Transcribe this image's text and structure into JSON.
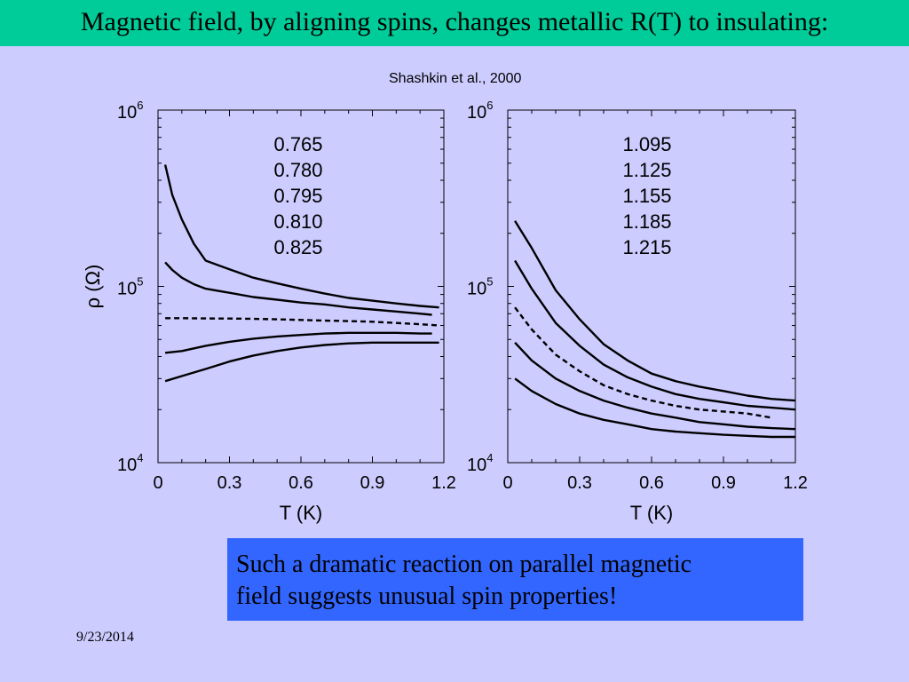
{
  "slide": {
    "title": "Magnetic field, by aligning spins, changes metallic R(T) to insulating:",
    "citation": "Shashkin et al., 2000",
    "callout_line1": "Such a dramatic reaction on parallel magnetic",
    "callout_line2": "field suggests unusual spin properties!",
    "date": "9/23/2014",
    "colors": {
      "title_bar": "#00cc99",
      "background": "#ccccff",
      "callout": "#3366ff"
    }
  },
  "chart_data": [
    {
      "type": "line",
      "ylog": true,
      "xlim": [
        0,
        1.2
      ],
      "ylim": [
        10000,
        1000000
      ],
      "xlabel": "T (K)",
      "ylabel": "ρ (Ω)",
      "xticklabels": [
        "0",
        "0.3",
        "0.6",
        "0.9",
        "1.2"
      ],
      "yticklabels": [
        {
          "base": "10",
          "exp": "6"
        },
        {
          "base": "10",
          "exp": "5"
        },
        {
          "base": "10",
          "exp": "4"
        }
      ],
      "legend": [
        "0.765",
        "0.780",
        "0.795",
        "0.810",
        "0.825"
      ],
      "series": [
        {
          "style": "solid",
          "points": [
            [
              0.03,
              490000
            ],
            [
              0.06,
              330000
            ],
            [
              0.1,
              240000
            ],
            [
              0.15,
              175000
            ],
            [
              0.2,
              140000
            ],
            [
              0.3,
              125000
            ],
            [
              0.4,
              112000
            ],
            [
              0.5,
              104000
            ],
            [
              0.6,
              97000
            ],
            [
              0.7,
              91000
            ],
            [
              0.8,
              86000
            ],
            [
              0.9,
              83000
            ],
            [
              1.0,
              80000
            ],
            [
              1.1,
              77500
            ],
            [
              1.18,
              76000
            ]
          ]
        },
        {
          "style": "solid",
          "points": [
            [
              0.03,
              137000
            ],
            [
              0.06,
              124000
            ],
            [
              0.1,
              112000
            ],
            [
              0.15,
              103000
            ],
            [
              0.2,
              97000
            ],
            [
              0.3,
              92000
            ],
            [
              0.4,
              87000
            ],
            [
              0.5,
              84000
            ],
            [
              0.6,
              81000
            ],
            [
              0.7,
              79000
            ],
            [
              0.8,
              76000
            ],
            [
              0.9,
              74000
            ],
            [
              1.0,
              72000
            ],
            [
              1.1,
              70000
            ],
            [
              1.15,
              69000
            ]
          ]
        },
        {
          "style": "dashed",
          "points": [
            [
              0.03,
              66000
            ],
            [
              0.1,
              66000
            ],
            [
              0.2,
              65800
            ],
            [
              0.3,
              65700
            ],
            [
              0.4,
              65500
            ],
            [
              0.5,
              65000
            ],
            [
              0.6,
              64500
            ],
            [
              0.7,
              64000
            ],
            [
              0.8,
              63500
            ],
            [
              0.9,
              63000
            ],
            [
              1.0,
              62000
            ],
            [
              1.1,
              61000
            ],
            [
              1.18,
              60000
            ]
          ]
        },
        {
          "style": "solid",
          "points": [
            [
              0.03,
              42000
            ],
            [
              0.1,
              43000
            ],
            [
              0.2,
              46000
            ],
            [
              0.3,
              48500
            ],
            [
              0.4,
              50500
            ],
            [
              0.5,
              52000
            ],
            [
              0.6,
              53000
            ],
            [
              0.7,
              54000
            ],
            [
              0.8,
              54500
            ],
            [
              0.9,
              54500
            ],
            [
              1.0,
              54500
            ],
            [
              1.1,
              54000
            ],
            [
              1.15,
              54000
            ]
          ]
        },
        {
          "style": "solid",
          "points": [
            [
              0.03,
              29000
            ],
            [
              0.1,
              31000
            ],
            [
              0.2,
              34000
            ],
            [
              0.3,
              37500
            ],
            [
              0.4,
              40500
            ],
            [
              0.5,
              43000
            ],
            [
              0.6,
              45000
            ],
            [
              0.7,
              46500
            ],
            [
              0.8,
              47500
            ],
            [
              0.9,
              48000
            ],
            [
              1.0,
              48000
            ],
            [
              1.1,
              48000
            ],
            [
              1.18,
              48000
            ]
          ]
        }
      ]
    },
    {
      "type": "line",
      "ylog": true,
      "xlim": [
        0,
        1.2
      ],
      "ylim": [
        10000,
        1000000
      ],
      "xlabel": "T (K)",
      "ylabel": "",
      "xticklabels": [
        "0",
        "0.3",
        "0.6",
        "0.9",
        "1.2"
      ],
      "yticklabels": [
        {
          "base": "10",
          "exp": "6"
        },
        {
          "base": "10",
          "exp": "5"
        },
        {
          "base": "10",
          "exp": "4"
        }
      ],
      "legend": [
        "1.095",
        "1.125",
        "1.155",
        "1.185",
        "1.215"
      ],
      "series": [
        {
          "style": "solid",
          "points": [
            [
              0.03,
              235000
            ],
            [
              0.1,
              165000
            ],
            [
              0.2,
              95000
            ],
            [
              0.3,
              65000
            ],
            [
              0.4,
              47000
            ],
            [
              0.5,
              38000
            ],
            [
              0.6,
              32000
            ],
            [
              0.7,
              29000
            ],
            [
              0.8,
              27000
            ],
            [
              0.9,
              25500
            ],
            [
              1.0,
              24000
            ],
            [
              1.1,
              23000
            ],
            [
              1.2,
              22500
            ]
          ]
        },
        {
          "style": "solid",
          "points": [
            [
              0.03,
              140000
            ],
            [
              0.1,
              97000
            ],
            [
              0.2,
              62000
            ],
            [
              0.3,
              46000
            ],
            [
              0.4,
              36000
            ],
            [
              0.5,
              30500
            ],
            [
              0.6,
              27000
            ],
            [
              0.7,
              24500
            ],
            [
              0.8,
              23000
            ],
            [
              0.9,
              22000
            ],
            [
              1.0,
              21000
            ],
            [
              1.1,
              20500
            ],
            [
              1.2,
              20000
            ]
          ]
        },
        {
          "style": "dashed",
          "points": [
            [
              0.03,
              76000
            ],
            [
              0.1,
              57000
            ],
            [
              0.2,
              41000
            ],
            [
              0.3,
              33000
            ],
            [
              0.4,
              27500
            ],
            [
              0.5,
              24500
            ],
            [
              0.6,
              22500
            ],
            [
              0.7,
              21000
            ],
            [
              0.8,
              20000
            ],
            [
              0.9,
              19500
            ],
            [
              1.0,
              19000
            ],
            [
              1.1,
              18000
            ]
          ]
        },
        {
          "style": "solid",
          "points": [
            [
              0.03,
              48000
            ],
            [
              0.1,
              38000
            ],
            [
              0.2,
              30000
            ],
            [
              0.3,
              25500
            ],
            [
              0.4,
              22500
            ],
            [
              0.5,
              20500
            ],
            [
              0.6,
              19000
            ],
            [
              0.7,
              18000
            ],
            [
              0.8,
              17000
            ],
            [
              0.9,
              16500
            ],
            [
              1.0,
              16000
            ],
            [
              1.1,
              15700
            ],
            [
              1.2,
              15500
            ]
          ]
        },
        {
          "style": "solid",
          "points": [
            [
              0.03,
              30000
            ],
            [
              0.1,
              25500
            ],
            [
              0.2,
              21500
            ],
            [
              0.3,
              19000
            ],
            [
              0.4,
              17500
            ],
            [
              0.5,
              16500
            ],
            [
              0.6,
              15500
            ],
            [
              0.7,
              15000
            ],
            [
              0.8,
              14700
            ],
            [
              0.9,
              14400
            ],
            [
              1.0,
              14200
            ],
            [
              1.1,
              14000
            ],
            [
              1.2,
              14000
            ]
          ]
        }
      ]
    }
  ]
}
